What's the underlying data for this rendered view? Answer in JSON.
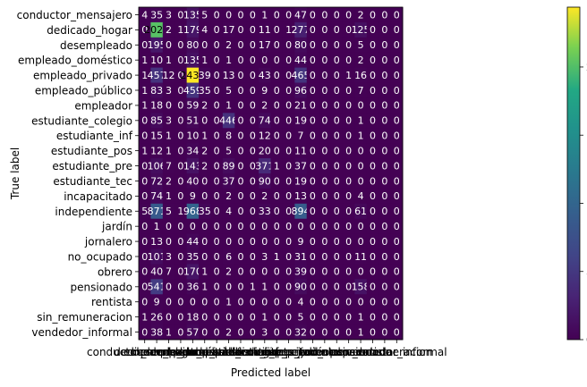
{
  "chart_data": {
    "type": "heatmap",
    "title": "",
    "xlabel": "Predicted label",
    "ylabel": "True label",
    "labels": [
      "conductor_mensajero",
      "dedicado_hogar",
      "desempleado",
      "empleado_doméstico",
      "empleado_privado",
      "empleado_público",
      "empleador",
      "estudiante_colegio",
      "estudiante_inf",
      "estudiante_pos",
      "estudiante_pre",
      "estudiante_tec",
      "incapacitado",
      "independiente",
      "jardín",
      "jornalero",
      "no_ocupado",
      "obrero",
      "pensionado",
      "rentista",
      "sin_remuneracion",
      "vendedor_informal"
    ],
    "matrix": [
      [
        4,
        35,
        3,
        0,
        135,
        5,
        0,
        0,
        0,
        0,
        1,
        0,
        0,
        47,
        0,
        0,
        0,
        0,
        2,
        0,
        0,
        0
      ],
      [
        0,
        2025,
        2,
        1,
        179,
        4,
        0,
        17,
        0,
        0,
        11,
        0,
        1,
        277,
        0,
        0,
        0,
        0,
        125,
        0,
        0,
        0
      ],
      [
        0,
        195,
        0,
        0,
        80,
        0,
        0,
        2,
        0,
        0,
        17,
        0,
        0,
        80,
        0,
        0,
        0,
        0,
        5,
        0,
        0,
        0
      ],
      [
        1,
        10,
        1,
        0,
        135,
        1,
        0,
        1,
        0,
        0,
        0,
        0,
        0,
        44,
        0,
        0,
        0,
        0,
        2,
        0,
        0,
        0
      ],
      [
        1,
        457,
        12,
        0,
        2439,
        39,
        0,
        13,
        0,
        0,
        43,
        0,
        0,
        465,
        0,
        0,
        0,
        1,
        16,
        0,
        0,
        0
      ],
      [
        1,
        83,
        3,
        0,
        459,
        35,
        0,
        5,
        0,
        0,
        9,
        0,
        0,
        96,
        0,
        0,
        0,
        0,
        7,
        0,
        0,
        0
      ],
      [
        1,
        18,
        0,
        0,
        59,
        2,
        0,
        1,
        0,
        0,
        2,
        0,
        0,
        21,
        0,
        0,
        0,
        0,
        0,
        0,
        0,
        0
      ],
      [
        0,
        85,
        3,
        0,
        51,
        0,
        0,
        446,
        0,
        0,
        74,
        0,
        0,
        19,
        0,
        0,
        0,
        0,
        1,
        0,
        0,
        0
      ],
      [
        0,
        15,
        1,
        0,
        10,
        1,
        0,
        8,
        0,
        0,
        12,
        0,
        0,
        7,
        0,
        0,
        0,
        0,
        1,
        0,
        0,
        0
      ],
      [
        1,
        12,
        1,
        0,
        34,
        2,
        0,
        5,
        0,
        0,
        20,
        0,
        0,
        11,
        0,
        0,
        0,
        0,
        0,
        0,
        0,
        0
      ],
      [
        0,
        106,
        7,
        0,
        143,
        2,
        0,
        89,
        0,
        0,
        371,
        1,
        0,
        37,
        0,
        0,
        0,
        0,
        0,
        0,
        0,
        0
      ],
      [
        0,
        72,
        2,
        0,
        40,
        0,
        0,
        37,
        0,
        0,
        90,
        0,
        0,
        19,
        0,
        0,
        0,
        0,
        0,
        0,
        0,
        0
      ],
      [
        0,
        74,
        1,
        0,
        9,
        0,
        0,
        2,
        0,
        0,
        2,
        0,
        0,
        13,
        0,
        0,
        0,
        0,
        4,
        0,
        0,
        0
      ],
      [
        5,
        871,
        5,
        1,
        968,
        35,
        0,
        4,
        0,
        0,
        33,
        0,
        0,
        894,
        0,
        0,
        0,
        0,
        61,
        0,
        0,
        0
      ],
      [
        0,
        1,
        0,
        0,
        0,
        0,
        0,
        0,
        0,
        0,
        0,
        0,
        0,
        0,
        0,
        0,
        0,
        0,
        0,
        0,
        0,
        0
      ],
      [
        0,
        13,
        0,
        0,
        44,
        0,
        0,
        0,
        0,
        0,
        0,
        0,
        0,
        9,
        0,
        0,
        0,
        0,
        0,
        0,
        0,
        0
      ],
      [
        0,
        101,
        3,
        0,
        35,
        0,
        0,
        6,
        0,
        0,
        3,
        1,
        0,
        31,
        0,
        0,
        0,
        0,
        11,
        0,
        0,
        0
      ],
      [
        0,
        40,
        7,
        0,
        170,
        1,
        0,
        2,
        0,
        0,
        0,
        0,
        0,
        39,
        0,
        0,
        0,
        0,
        0,
        0,
        0,
        0
      ],
      [
        0,
        541,
        0,
        0,
        36,
        1,
        0,
        0,
        0,
        1,
        1,
        0,
        0,
        90,
        0,
        0,
        0,
        0,
        158,
        0,
        0,
        0
      ],
      [
        0,
        9,
        0,
        0,
        0,
        0,
        0,
        1,
        0,
        0,
        0,
        0,
        0,
        4,
        0,
        0,
        0,
        0,
        0,
        0,
        0,
        0
      ],
      [
        1,
        26,
        0,
        0,
        18,
        0,
        0,
        0,
        0,
        0,
        1,
        0,
        0,
        5,
        0,
        0,
        0,
        0,
        1,
        0,
        0,
        0
      ],
      [
        0,
        38,
        1,
        0,
        57,
        0,
        0,
        2,
        0,
        0,
        3,
        0,
        0,
        32,
        0,
        0,
        0,
        0,
        1,
        0,
        0,
        0
      ]
    ],
    "colormap": "viridis",
    "vmin": 0,
    "vmax": 2439,
    "colorbar_ticks": [
      0,
      500,
      1000,
      1500,
      2000
    ]
  }
}
